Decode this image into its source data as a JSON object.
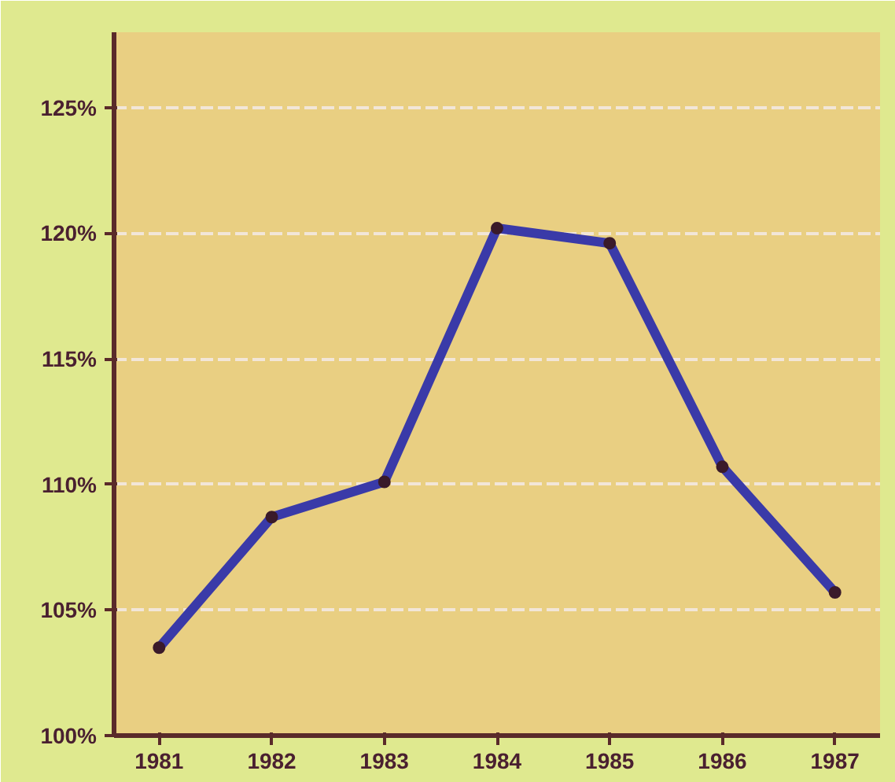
{
  "chart_data": {
    "type": "line",
    "categories": [
      "1981",
      "1982",
      "1983",
      "1984",
      "1985",
      "1986",
      "1987"
    ],
    "series": [
      {
        "color": "#3a3aa8",
        "values": [
          103.5,
          108.7,
          110.1,
          120.2,
          119.6,
          110.7,
          105.7
        ]
      }
    ],
    "ylim": [
      100,
      128
    ],
    "yticks": [
      {
        "value": 100,
        "label": "100%"
      },
      {
        "value": 105,
        "label": "105%"
      },
      {
        "value": 110,
        "label": "110%"
      },
      {
        "value": 115,
        "label": "115%"
      },
      {
        "value": 120,
        "label": "120%"
      },
      {
        "value": 125,
        "label": "125%"
      }
    ],
    "grid": "y",
    "marker": "circle",
    "line_style": "solid"
  }
}
